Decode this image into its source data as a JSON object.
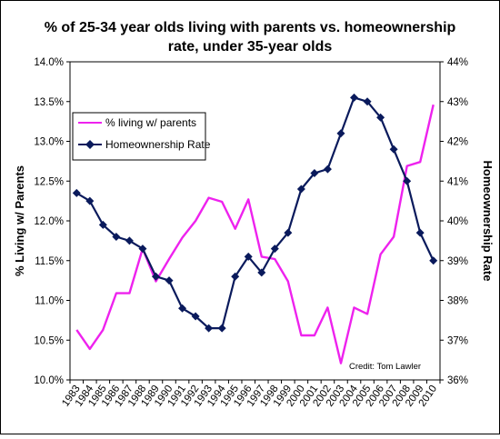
{
  "chart_data": {
    "type": "line",
    "title_lines": [
      "% of 25-34 year olds living with parents vs. homeownership",
      "rate, under 35-year olds"
    ],
    "ylabel_left": "% Living w/ Parents",
    "ylabel_right": "Homeownership Rate",
    "xlabel": "",
    "categories": [
      "1983",
      "1984",
      "1985",
      "1986",
      "1987",
      "1988",
      "1989",
      "1990",
      "1991",
      "1992",
      "1993",
      "1994",
      "1995",
      "1996",
      "1997",
      "1998",
      "1999",
      "2000",
      "2001",
      "2002",
      "2003",
      "2004",
      "2005",
      "2006",
      "2007",
      "2008",
      "2009",
      "2010"
    ],
    "ylim_left": [
      10.0,
      14.0
    ],
    "ylim_right": [
      36,
      44
    ],
    "yticks_left": [
      "10.0%",
      "10.5%",
      "11.0%",
      "11.5%",
      "12.0%",
      "12.5%",
      "13.0%",
      "13.5%",
      "14.0%"
    ],
    "yticks_right": [
      "36%",
      "37%",
      "38%",
      "39%",
      "40%",
      "41%",
      "42%",
      "43%",
      "44%"
    ],
    "grid": false,
    "legend_position": "upper-left",
    "credit": "Credit: Tom Lawler",
    "series": [
      {
        "name": "% living w/ parents",
        "axis": "left",
        "color": "#ee22ee",
        "marker": "none",
        "values": [
          10.63,
          10.39,
          10.63,
          11.09,
          11.09,
          11.65,
          11.24,
          11.52,
          11.79,
          12.0,
          12.29,
          12.24,
          11.9,
          12.27,
          11.55,
          11.52,
          11.24,
          10.56,
          10.56,
          10.91,
          10.21,
          10.91,
          10.83,
          11.58,
          11.8,
          12.69,
          12.74,
          13.46
        ]
      },
      {
        "name": "Homeownership Rate",
        "axis": "right",
        "color": "#0a1a5c",
        "marker": "diamond",
        "values": [
          40.7,
          40.5,
          39.9,
          39.6,
          39.5,
          39.3,
          38.6,
          38.5,
          37.8,
          37.6,
          37.3,
          37.3,
          38.6,
          39.1,
          38.7,
          39.3,
          39.7,
          40.8,
          41.2,
          41.3,
          42.2,
          43.1,
          43.0,
          42.6,
          41.8,
          41.0,
          39.7,
          39.0
        ]
      }
    ]
  }
}
